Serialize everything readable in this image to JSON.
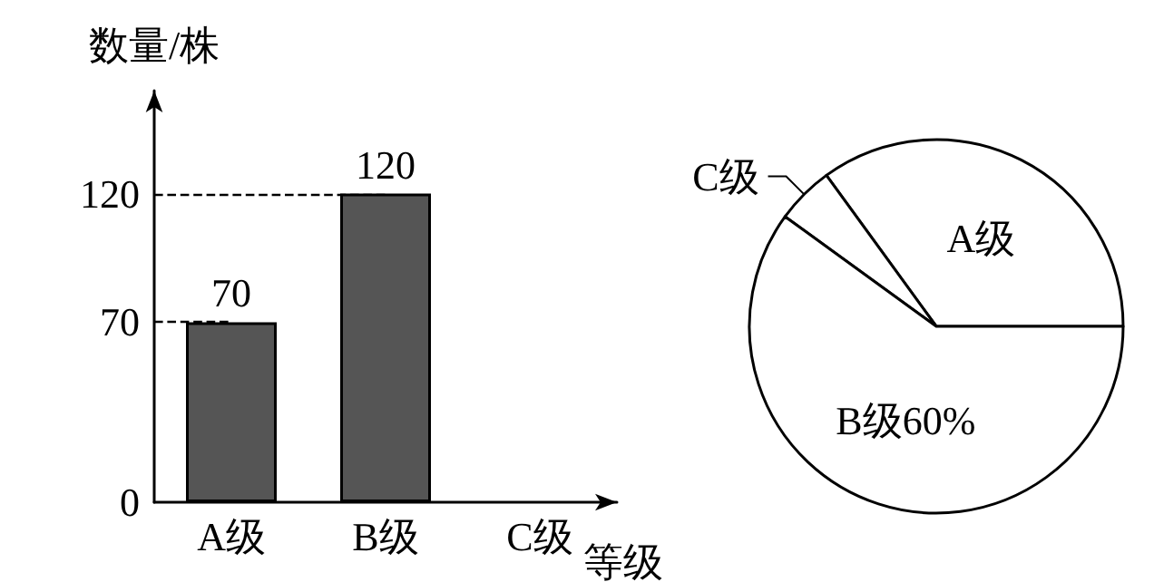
{
  "chart_data": [
    {
      "type": "bar",
      "ylabel": "数量/株",
      "xlabel": "等级",
      "categories": [
        "A级",
        "B级",
        "C级"
      ],
      "values": [
        70,
        120,
        null
      ],
      "color": "#555555",
      "ylim": [
        0,
        160
      ],
      "yticks": [
        0,
        70,
        120
      ],
      "data_labels": true,
      "grid": false,
      "legend": false,
      "ref_lines": [
        {
          "axis": "y",
          "value": 70,
          "line_style": "dashed",
          "color": "#000000"
        },
        {
          "axis": "y",
          "value": 120,
          "line_style": "dashed",
          "color": "#000000"
        }
      ]
    },
    {
      "type": "pie",
      "categories": [
        "A级",
        "C级",
        "B级"
      ],
      "values": [
        35,
        5,
        60
      ],
      "value_labels": [
        null,
        null,
        "60%"
      ],
      "colors": [
        "#ffffff",
        "#ffffff",
        "#ffffff"
      ],
      "legend": false
    }
  ]
}
